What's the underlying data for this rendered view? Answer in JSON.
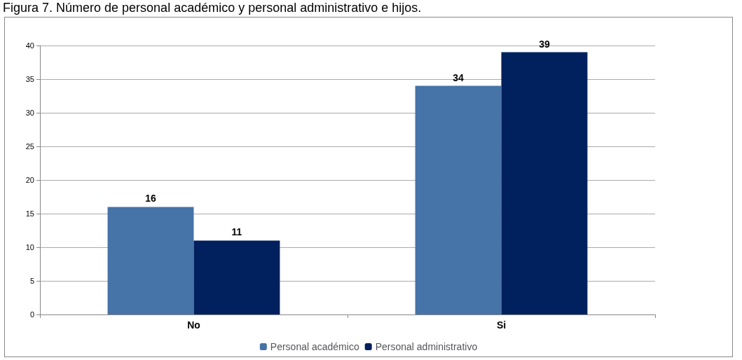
{
  "chart_data": {
    "type": "bar",
    "title": "Figura 7. Número de personal académico y personal administrativo e hijos.",
    "categories": [
      "No",
      "Si"
    ],
    "series": [
      {
        "name": "Personal académico",
        "color": "#4673a8",
        "values": [
          16,
          34
        ]
      },
      {
        "name": "Personal administrativo",
        "color": "#00205e",
        "values": [
          11,
          39
        ]
      }
    ],
    "ylim": [
      0,
      40
    ],
    "yticks": [
      0,
      5,
      10,
      15,
      20,
      25,
      30,
      35,
      40
    ],
    "grid": "y",
    "legend": "bottom",
    "data_labels": true
  }
}
